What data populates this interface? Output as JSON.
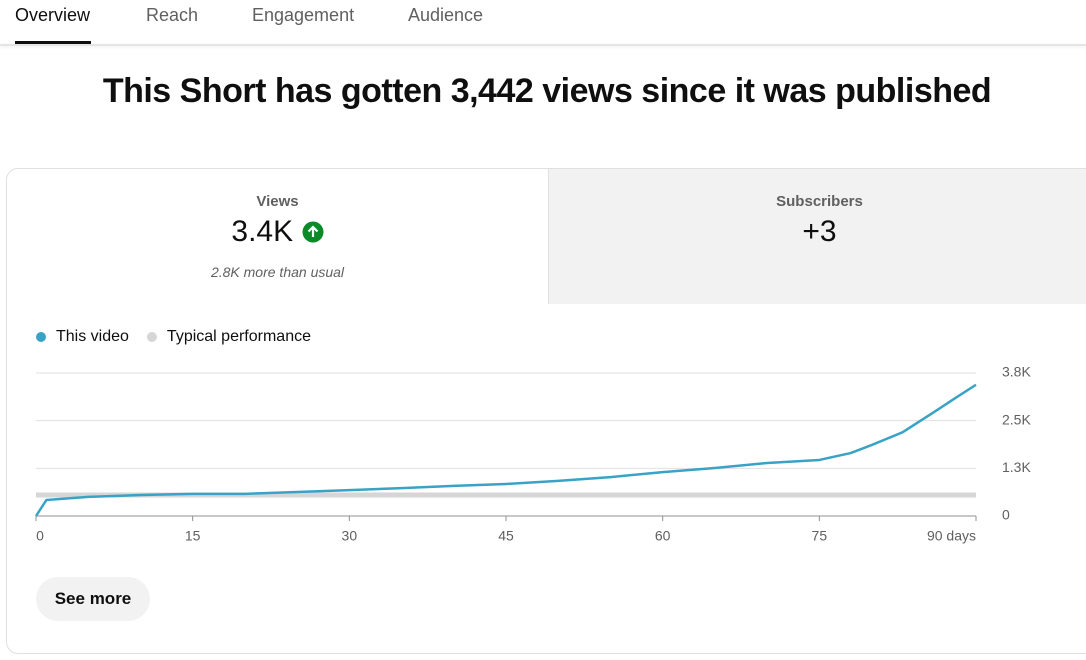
{
  "tabs": [
    "Overview",
    "Reach",
    "Engagement",
    "Audience"
  ],
  "headline": "This Short has gotten 3,442 views since it was published",
  "metrics": [
    {
      "label": "Views",
      "value": "3.4K",
      "note": "2.8K more than usual"
    },
    {
      "label": "Subscribers",
      "value": "+3"
    }
  ],
  "button": "See more",
  "chart_data": {
    "type": "line",
    "x": [
      0,
      1,
      5,
      10,
      15,
      20,
      25,
      30,
      35,
      40,
      45,
      50,
      55,
      60,
      65,
      70,
      75,
      78,
      80,
      83,
      86,
      88,
      90
    ],
    "series": [
      {
        "name": "This video",
        "color": "#39a3c6",
        "values": [
          0,
          420,
          500,
          550,
          580,
          580,
          630,
          680,
          730,
          790,
          840,
          920,
          1020,
          1150,
          1260,
          1390,
          1470,
          1650,
          1860,
          2200,
          2730,
          3090,
          3442
        ]
      },
      {
        "name": "Typical performance",
        "color": "#d6d6d6",
        "values": [
          550,
          550,
          550,
          550,
          550,
          550,
          550,
          550,
          550,
          550,
          550,
          550,
          550,
          550,
          550,
          550,
          550,
          550,
          550,
          550,
          550,
          550,
          550
        ]
      }
    ],
    "xlim": [
      0,
      90
    ],
    "xticks": [
      0,
      15,
      30,
      45,
      60,
      75,
      {
        "value": 90,
        "label": "90 days"
      }
    ],
    "ylim": [
      0,
      3750
    ],
    "yticks": [
      0,
      {
        "value": 1250,
        "label": "1.3K"
      },
      {
        "value": 2500,
        "label": "2.5K"
      },
      {
        "value": 3750,
        "label": "3.8K"
      }
    ],
    "grid": true
  }
}
